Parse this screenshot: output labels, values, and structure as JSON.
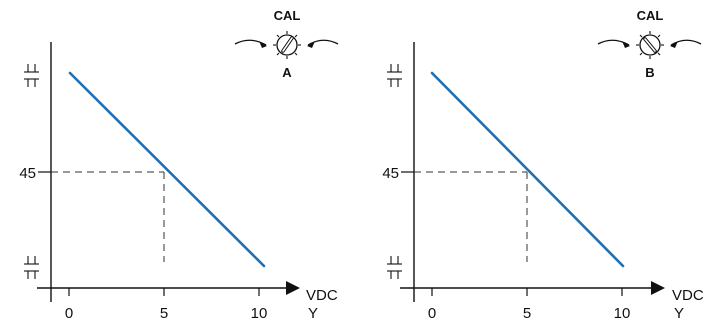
{
  "colors": {
    "line": "#1f6fb2",
    "axis": "#111111",
    "guide": "#333333"
  },
  "panels": [
    {
      "knob": {
        "top_label": "CAL",
        "letter": "A",
        "pointer": "up-right"
      },
      "y_tick_label": "45",
      "x_ticks": [
        "0",
        "5",
        "10"
      ],
      "x_unit": "VDC",
      "x_var": "Y"
    },
    {
      "knob": {
        "top_label": "CAL",
        "letter": "B",
        "pointer": "down-right"
      },
      "y_tick_label": "45",
      "x_ticks": [
        "0",
        "5",
        "10"
      ],
      "x_unit": "VDC",
      "x_var": "Y"
    }
  ],
  "chart_data": [
    {
      "type": "line",
      "x": [
        0,
        10
      ],
      "y_relative": "falls linearly from upper limit at 0 VDC to lower limit at 10 VDC",
      "marked_point": {
        "x": 5,
        "y": "45"
      },
      "xticks": [
        "0",
        "5",
        "10"
      ],
      "xlabel": "VDC",
      "xlim": [
        0,
        10
      ]
    },
    {
      "type": "line",
      "x": [
        0,
        10
      ],
      "y_relative": "falls linearly from upper limit at 0 VDC to lower limit at 10 VDC",
      "marked_point": {
        "x": 5,
        "y": "45"
      },
      "xticks": [
        "0",
        "5",
        "10"
      ],
      "xlabel": "VDC",
      "xlim": [
        0,
        10
      ]
    }
  ]
}
